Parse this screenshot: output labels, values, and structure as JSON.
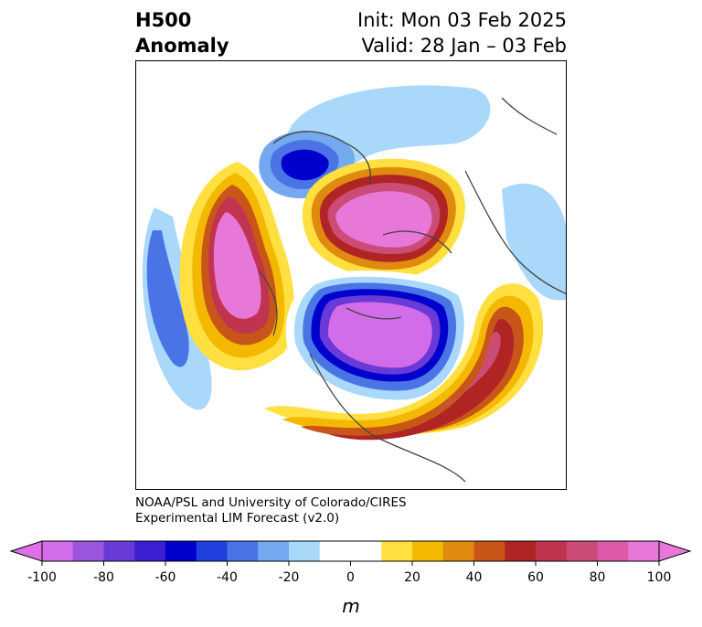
{
  "title": {
    "line1_left": "H500",
    "line2_left": "Anomaly",
    "line1_right": "Init: Mon 03 Feb 2025",
    "line2_right": "Valid: 28 Jan – 03 Feb"
  },
  "credits": {
    "line1": "NOAA/PSL and University of Colorado/CIRES",
    "line2": "Experimental LIM Forecast (v2.0)"
  },
  "colorbar": {
    "unit": "m",
    "ticks": [
      "-100",
      "-80",
      "-60",
      "-40",
      "-20",
      "0",
      "20",
      "40",
      "60",
      "80",
      "100"
    ],
    "bounds": [
      -100,
      -90,
      -80,
      -70,
      -60,
      -50,
      -40,
      -30,
      -20,
      -10,
      10,
      20,
      30,
      40,
      50,
      60,
      70,
      80,
      90,
      100
    ],
    "colors": [
      "#d36ce8",
      "#9b55e0",
      "#6a3ad9",
      "#3a20d0",
      "#0000cc",
      "#2240dd",
      "#4a74e6",
      "#74a8ef",
      "#aad8fa",
      "#ffffff",
      "#ffe040",
      "#f5b800",
      "#e08a10",
      "#c85618",
      "#b02424",
      "#c03450",
      "#cc4c78",
      "#dc5aa8",
      "#e878d8"
    ],
    "under_color": "#e070e8",
    "over_color": "#e878d8"
  }
}
